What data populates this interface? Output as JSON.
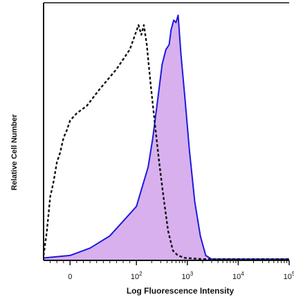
{
  "chart_data": {
    "type": "area",
    "title": "",
    "xlabel": "Log Fluorescence Intensity",
    "ylabel": "Relative Cell Number",
    "x_scale": "biexponential-log",
    "xlim": [
      -40,
      100000
    ],
    "ylim": [
      0,
      100
    ],
    "x_ticks": [
      {
        "value": 0,
        "base": "0",
        "exp": ""
      },
      {
        "value": 100,
        "base": "10",
        "exp": "2"
      },
      {
        "value": 1000,
        "base": "10",
        "exp": "3"
      },
      {
        "value": 10000,
        "base": "10",
        "exp": "4"
      },
      {
        "value": 100000,
        "base": "10",
        "exp": "5"
      }
    ],
    "grid": false,
    "legend": "none",
    "series": [
      {
        "style": "dashed-outline",
        "color": "#111111",
        "points": [
          [
            -40,
            2
          ],
          [
            -35,
            12
          ],
          [
            -30,
            26
          ],
          [
            -25,
            32
          ],
          [
            -20,
            40
          ],
          [
            -15,
            44
          ],
          [
            -10,
            50
          ],
          [
            -5,
            53
          ],
          [
            0,
            57
          ],
          [
            10,
            60
          ],
          [
            25,
            63
          ],
          [
            45,
            70
          ],
          [
            70,
            78
          ],
          [
            90,
            86
          ],
          [
            110,
            96
          ],
          [
            125,
            92
          ],
          [
            140,
            96
          ],
          [
            160,
            88
          ],
          [
            190,
            72
          ],
          [
            230,
            56
          ],
          [
            280,
            40
          ],
          [
            340,
            26
          ],
          [
            420,
            12
          ],
          [
            520,
            4
          ],
          [
            650,
            2
          ],
          [
            900,
            1
          ],
          [
            2000,
            0.5
          ],
          [
            100000,
            0.5
          ]
        ]
      },
      {
        "style": "filled",
        "color": "#1a1ae0",
        "fill": "#d8b0ee",
        "points": [
          [
            -40,
            1
          ],
          [
            0,
            2
          ],
          [
            30,
            5
          ],
          [
            60,
            10
          ],
          [
            80,
            16
          ],
          [
            100,
            22
          ],
          [
            130,
            30
          ],
          [
            170,
            38
          ],
          [
            210,
            50
          ],
          [
            260,
            65
          ],
          [
            320,
            80
          ],
          [
            380,
            86
          ],
          [
            440,
            88
          ],
          [
            480,
            94
          ],
          [
            540,
            98
          ],
          [
            600,
            97
          ],
          [
            660,
            100
          ],
          [
            750,
            84
          ],
          [
            900,
            66
          ],
          [
            1100,
            45
          ],
          [
            1400,
            24
          ],
          [
            1800,
            10
          ],
          [
            2300,
            2
          ],
          [
            3000,
            0.5
          ],
          [
            100000,
            0.5
          ]
        ]
      }
    ]
  },
  "colors": {
    "axis": "#111111",
    "filled_outline": "#1a1ae0",
    "filled_area": "#d8b0ee",
    "dashed_outline": "#111111"
  }
}
